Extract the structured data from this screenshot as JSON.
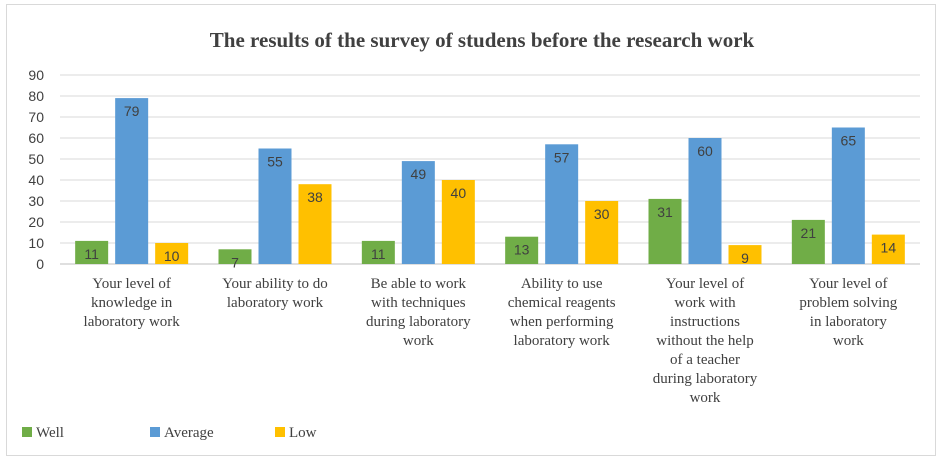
{
  "chart_data": {
    "type": "bar",
    "title": "The results of the survey of studens before the research work",
    "ylim": [
      0,
      90
    ],
    "yticks": [
      0,
      10,
      20,
      30,
      40,
      50,
      60,
      70,
      80,
      90
    ],
    "grid": true,
    "legend_position": "bottom-left",
    "categories": [
      "Your level of knowledge in laboratory work",
      "Your ability to do laboratory work",
      "Be able to work with techniques during laboratory work",
      "Ability to use chemical reagents when performing laboratory work",
      "Your level of work with instructions without the help of a teacher during laboratory work",
      "Your level of problem solving in laboratory work"
    ],
    "category_lines": [
      [
        "Your level of",
        "knowledge in",
        "laboratory work"
      ],
      [
        "Your ability to do",
        "laboratory work"
      ],
      [
        "Be able to work",
        "with techniques",
        "during laboratory",
        "work"
      ],
      [
        "Ability to use",
        "chemical reagents",
        "when performing",
        "laboratory work"
      ],
      [
        "Your level of",
        "work with",
        "instructions",
        "without the help",
        "of a teacher",
        "during laboratory",
        "work"
      ],
      [
        "Your level of",
        "problem solving",
        "in laboratory",
        "work"
      ]
    ],
    "series": [
      {
        "name": "Well",
        "color": "#70ad47",
        "values": [
          11,
          7,
          11,
          13,
          31,
          21
        ]
      },
      {
        "name": "Average",
        "color": "#5b9bd5",
        "values": [
          79,
          55,
          49,
          57,
          60,
          65
        ]
      },
      {
        "name": "Low",
        "color": "#ffc000",
        "values": [
          10,
          38,
          40,
          30,
          9,
          14
        ]
      }
    ]
  }
}
